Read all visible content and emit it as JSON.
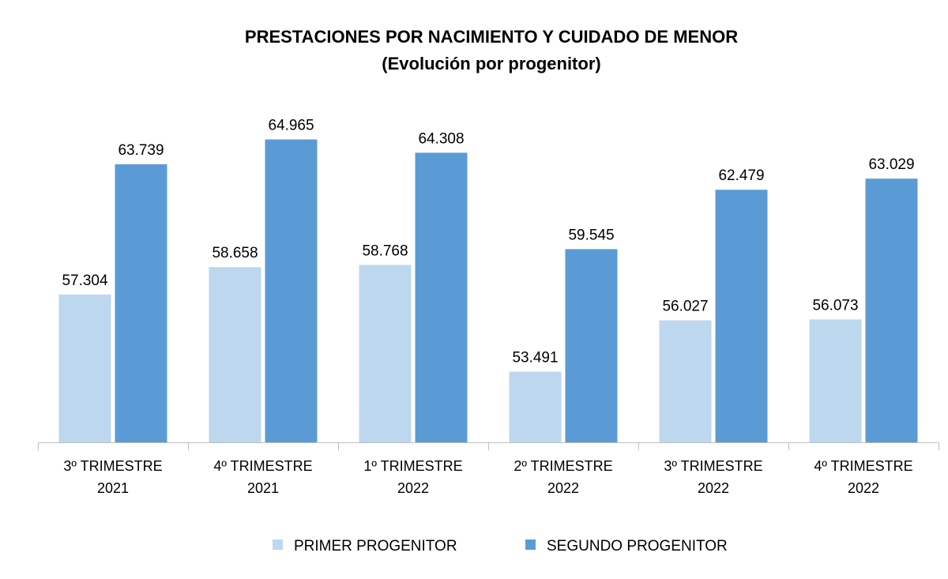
{
  "chart_data": {
    "type": "bar",
    "title": "PRESTACIONES POR NACIMIENTO Y CUIDADO DE MENOR",
    "subtitle": "(Evolución por progenitor)",
    "categories": [
      [
        "3º TRIMESTRE",
        "2021"
      ],
      [
        "4º TRIMESTRE",
        "2021"
      ],
      [
        "1º TRIMESTRE",
        "2022"
      ],
      [
        "2º TRIMESTRE",
        "2022"
      ],
      [
        "3º TRIMESTRE",
        "2022"
      ],
      [
        "4º TRIMESTRE",
        "2022"
      ]
    ],
    "series": [
      {
        "name": "PRIMER PROGENITOR",
        "color": "#BDD7EE",
        "values": [
          57304,
          58658,
          58768,
          53491,
          56027,
          56073
        ],
        "labels": [
          "57.304",
          "58.658",
          "58.768",
          "53.491",
          "56.027",
          "56.073"
        ]
      },
      {
        "name": "SEGUNDO PROGENITOR",
        "color": "#5B9BD5",
        "values": [
          63739,
          64965,
          64308,
          59545,
          62479,
          63029
        ],
        "labels": [
          "63.739",
          "64.965",
          "64.308",
          "59.545",
          "62.479",
          "63.029"
        ]
      }
    ],
    "xlabel": "",
    "ylabel": "",
    "ylim": [
      50000,
      66000
    ],
    "grid": false,
    "legend": "bottom"
  }
}
